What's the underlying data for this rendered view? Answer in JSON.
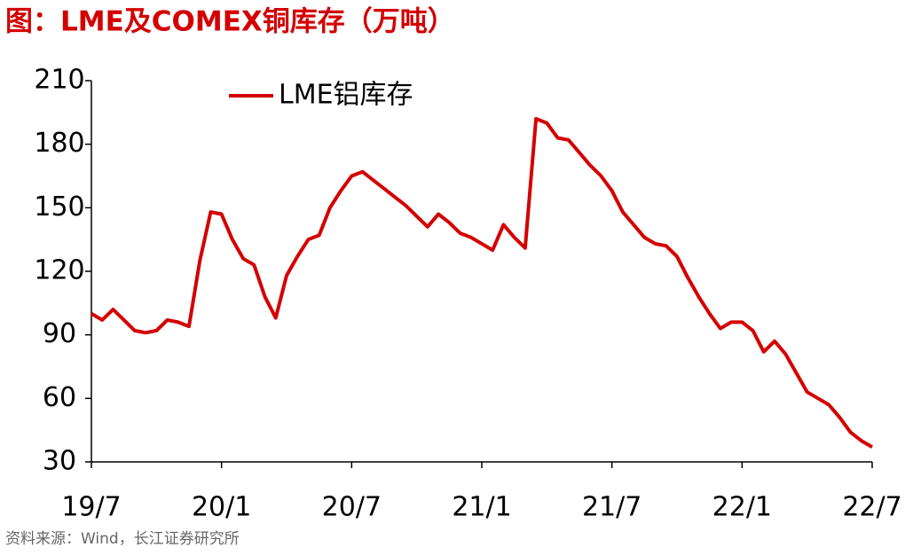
{
  "chart_data": {
    "type": "line",
    "title": "图：LME及COMEX铜库存（万吨）",
    "source": "资料来源：Wind，长江证券研究所",
    "categories": [
      "19/7",
      null,
      null,
      null,
      null,
      null,
      null,
      null,
      null,
      null,
      null,
      null,
      "20/1",
      null,
      null,
      null,
      null,
      null,
      null,
      null,
      null,
      null,
      null,
      null,
      "20/7",
      null,
      null,
      null,
      null,
      null,
      null,
      null,
      null,
      null,
      null,
      null,
      "21/1",
      null,
      null,
      null,
      null,
      null,
      null,
      null,
      null,
      null,
      null,
      null,
      "21/7",
      null,
      null,
      null,
      null,
      null,
      null,
      null,
      null,
      null,
      null,
      null,
      "22/1",
      null,
      null,
      null,
      null,
      null,
      null,
      null,
      null,
      null,
      null,
      null,
      "22/7"
    ],
    "series": [
      {
        "name": "LME铝库存",
        "color": "#d40000",
        "values": [
          100,
          97,
          102,
          97,
          92,
          91,
          92,
          97,
          96,
          94,
          125,
          148,
          147,
          135,
          126,
          123,
          108,
          98,
          118,
          127,
          135,
          137,
          150,
          158,
          165,
          167,
          163,
          159,
          155,
          151,
          146,
          141,
          147,
          143,
          138,
          136,
          133,
          130,
          142,
          136,
          131,
          192,
          190,
          183,
          182,
          176,
          170,
          165,
          158,
          148,
          142,
          136,
          133,
          132,
          127,
          117,
          108,
          100,
          93,
          96,
          96,
          92,
          82,
          87,
          81,
          72,
          63,
          60,
          57,
          51,
          44,
          40,
          37
        ]
      }
    ],
    "ylim": [
      30,
      210
    ],
    "yticks": [
      30,
      60,
      90,
      120,
      150,
      180,
      210
    ],
    "legend": "upper left"
  }
}
